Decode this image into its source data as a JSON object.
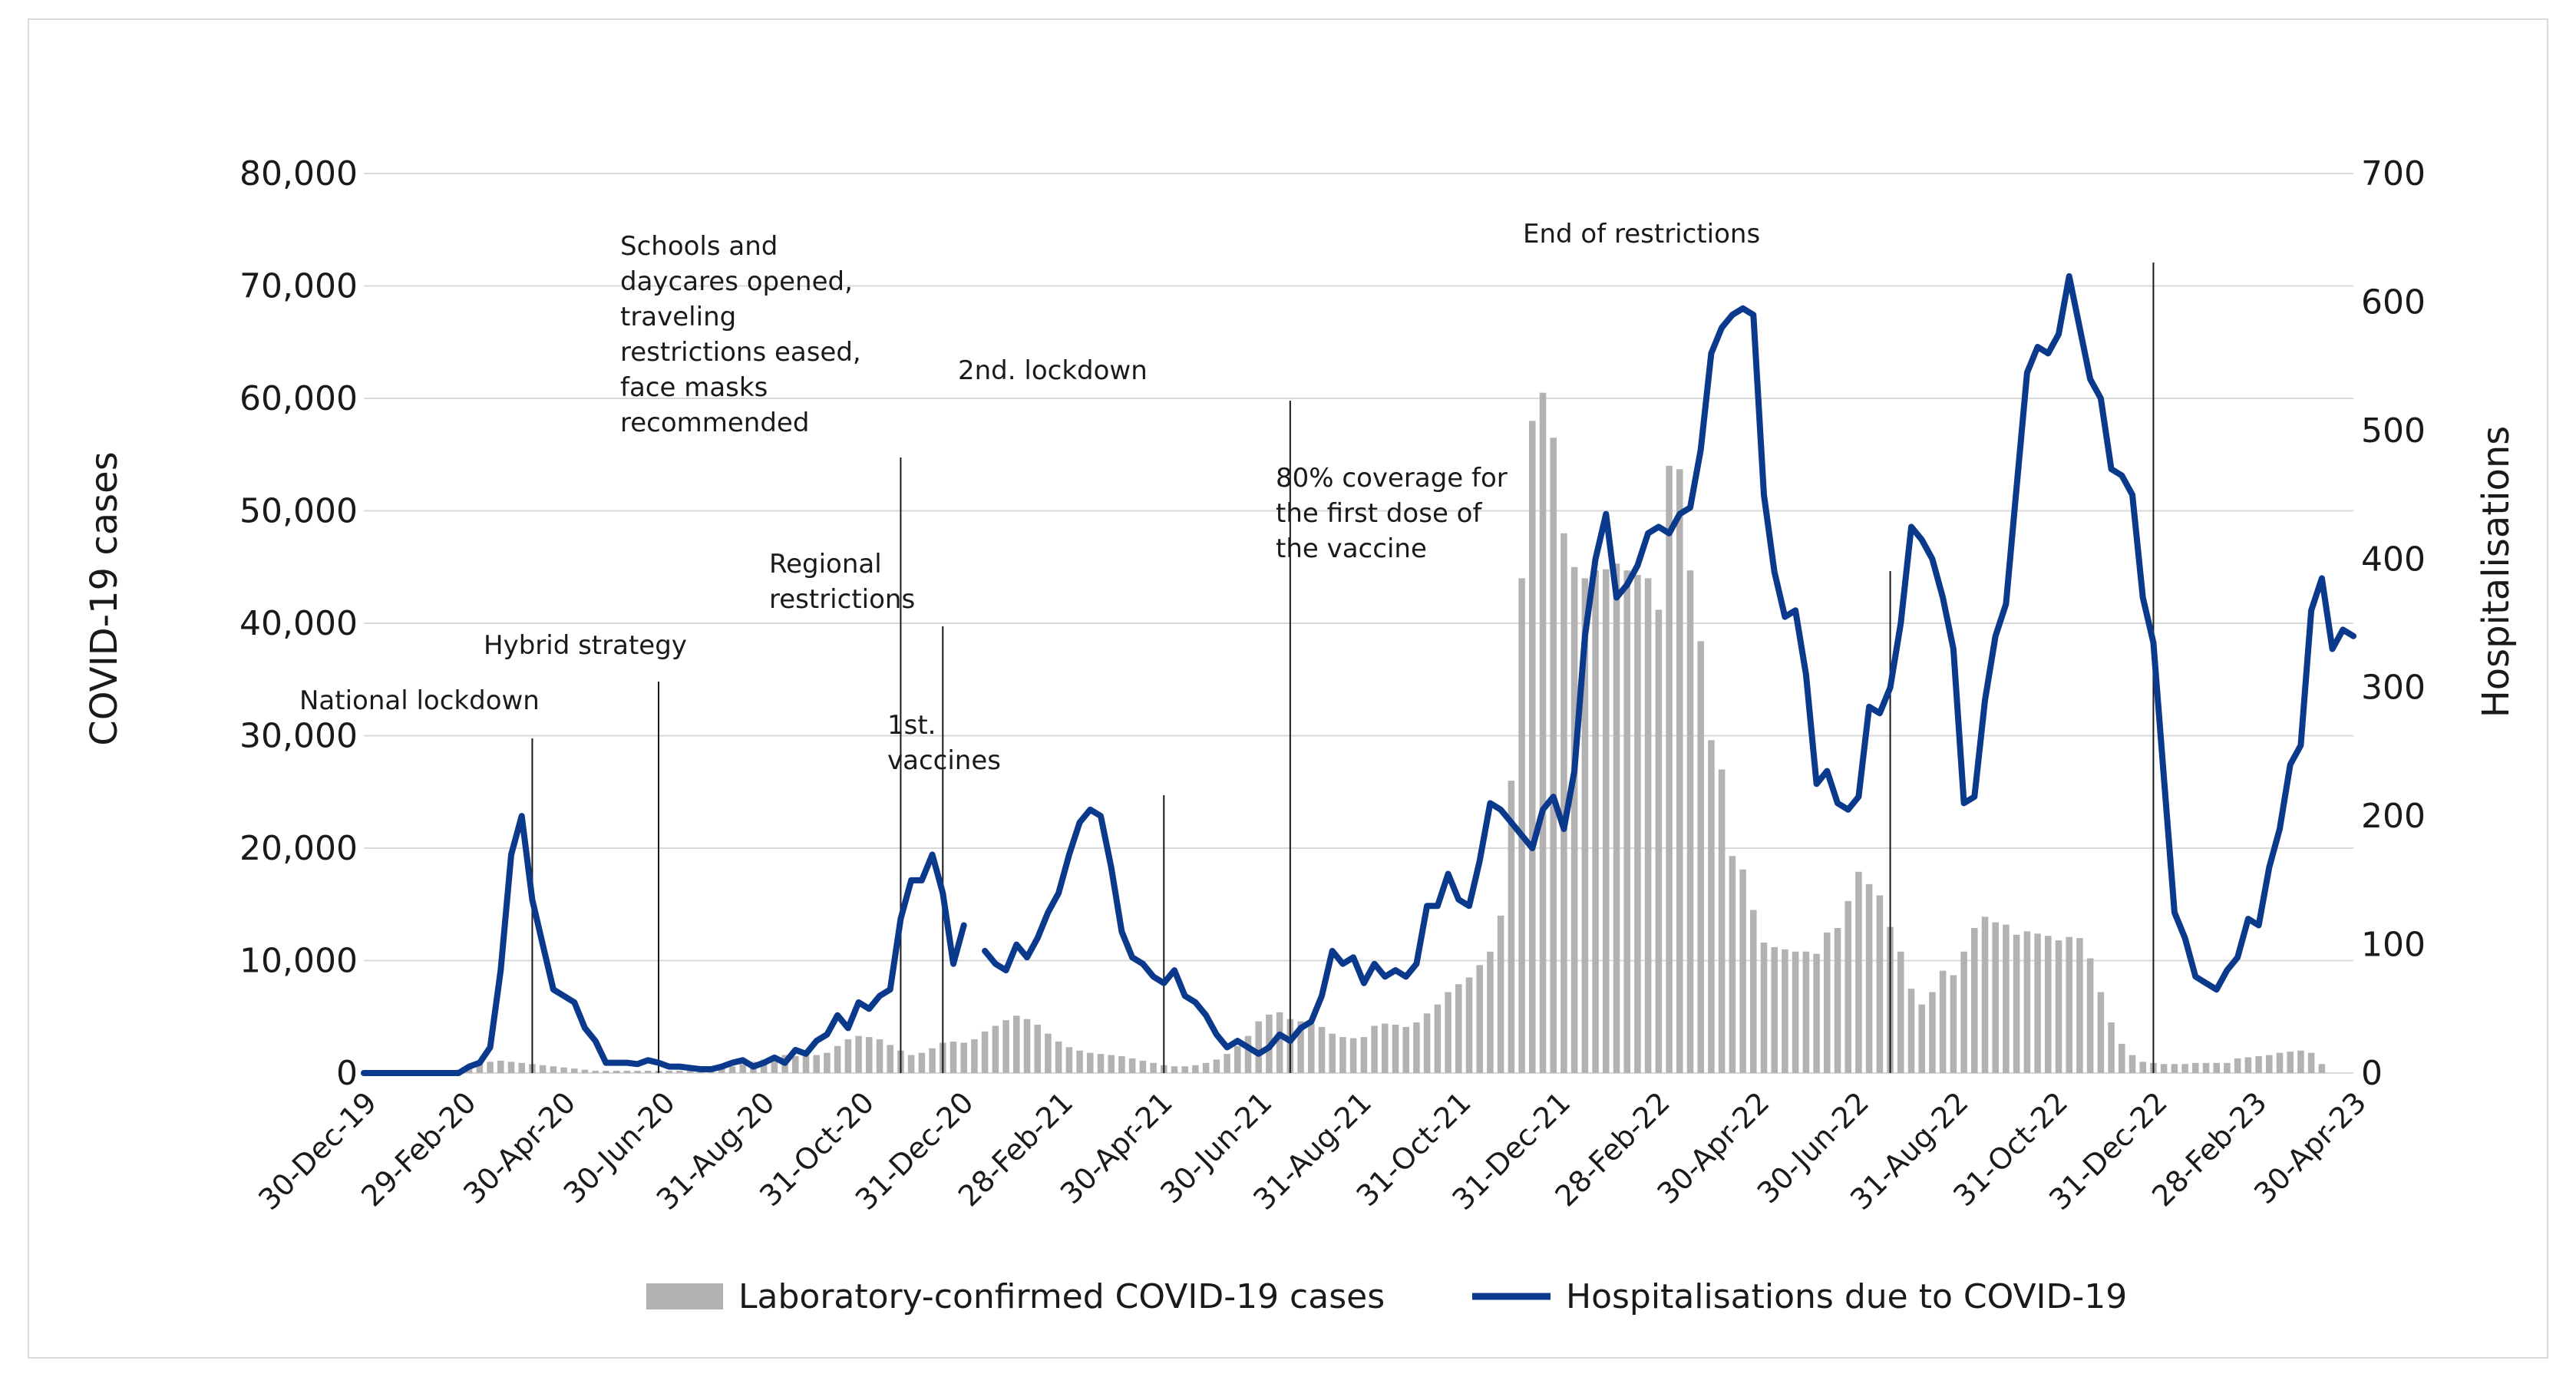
{
  "chart_data": {
    "type": "bar+line",
    "left_axis": {
      "label": "COVID-19 cases",
      "ylim": [
        0,
        80000
      ],
      "ticks": [
        "0",
        "10,000",
        "20,000",
        "30,000",
        "40,000",
        "50,000",
        "60,000",
        "70,000",
        "80,000"
      ]
    },
    "right_axis": {
      "label": "Hospitalisations",
      "ylim": [
        0,
        700
      ],
      "ticks": [
        "0",
        "100",
        "200",
        "300",
        "400",
        "500",
        "600",
        "700"
      ]
    },
    "x_tick_labels": [
      "30-Dec-19",
      "29-Feb-20",
      "30-Apr-20",
      "30-Jun-20",
      "31-Aug-20",
      "31-Oct-20",
      "31-Dec-20",
      "28-Feb-21",
      "30-Apr-21",
      "30-Jun-21",
      "31-Aug-21",
      "31-Oct-21",
      "31-Dec-21",
      "28-Feb-22",
      "30-Apr-22",
      "30-Jun-22",
      "31-Aug-22",
      "31-Oct-22",
      "31-Dec-22",
      "28-Feb-23",
      "30-Apr-23"
    ],
    "grid": true,
    "legend_position": "bottom",
    "colors": {
      "bars": "#b3b1b1",
      "line": "#0b3a8c",
      "grid": "#d9d9d9",
      "annotation_line": "#1a1a1a"
    },
    "series": [
      {
        "name": "Laboratory-confirmed COVID-19 cases",
        "kind": "bar",
        "axis": "left",
        "values": [
          0,
          0,
          0,
          0,
          0,
          0,
          0,
          0,
          100,
          300,
          500,
          800,
          1000,
          1100,
          1000,
          900,
          800,
          700,
          600,
          500,
          400,
          300,
          200,
          200,
          200,
          200,
          200,
          200,
          200,
          200,
          200,
          300,
          300,
          400,
          500,
          600,
          800,
          1000,
          1200,
          1400,
          1600,
          1500,
          1600,
          1600,
          1800,
          2400,
          3000,
          3300,
          3200,
          3000,
          2500,
          2000,
          1600,
          1800,
          2200,
          2700,
          2800,
          2700,
          3000,
          3700,
          4200,
          4700,
          5100,
          4800,
          4300,
          3500,
          2800,
          2300,
          2000,
          1800,
          1700,
          1600,
          1500,
          1300,
          1100,
          900,
          700,
          600,
          600,
          700,
          900,
          1200,
          1700,
          2400,
          3300,
          4600,
          5200,
          5400,
          4800,
          4600,
          4400,
          4100,
          3500,
          3200,
          3100,
          3200,
          4200,
          4400,
          4300,
          4100,
          4500,
          5300,
          6100,
          7200,
          7900,
          8500,
          9600,
          10800,
          14000,
          26000,
          44000,
          58000,
          60500,
          56500,
          48000,
          45000,
          44000,
          44700,
          44800,
          45300,
          44700,
          44300,
          44000,
          41200,
          54000,
          53700,
          44700,
          38400,
          29600,
          27000,
          19300,
          18100,
          14500,
          11600,
          11200,
          11000,
          10800,
          10800,
          10600,
          12500,
          12900,
          15300,
          17900,
          16800,
          15800,
          13000,
          10800,
          7500,
          6100,
          7200,
          9100,
          8700,
          10800,
          12900,
          13900,
          13400,
          13200,
          12300,
          12600,
          12400,
          12200,
          11800,
          12100,
          12000,
          10200,
          7200,
          4500,
          2600,
          1600,
          1000,
          900,
          800,
          800,
          800,
          900,
          900,
          900,
          900,
          1300,
          1400,
          1500,
          1600,
          1800,
          1900,
          2000,
          1800,
          800
        ]
      },
      {
        "name": "Hospitalisations due to COVID-19",
        "kind": "line",
        "axis": "right",
        "values": [
          0,
          0,
          0,
          0,
          0,
          0,
          0,
          0,
          0,
          0,
          5,
          8,
          20,
          80,
          170,
          200,
          135,
          100,
          65,
          60,
          55,
          35,
          25,
          8,
          8,
          8,
          7,
          10,
          8,
          5,
          5,
          4,
          3,
          3,
          5,
          8,
          10,
          5,
          8,
          12,
          8,
          18,
          15,
          25,
          30,
          45,
          35,
          55,
          50,
          60,
          65,
          120,
          150,
          150,
          170,
          140,
          85,
          115,
          null,
          95,
          85,
          80,
          100,
          90,
          105,
          125,
          140,
          170,
          195,
          205,
          200,
          160,
          110,
          90,
          85,
          75,
          70,
          80,
          60,
          55,
          45,
          30,
          20,
          25,
          20,
          15,
          20,
          30,
          25,
          35,
          40,
          60,
          95,
          85,
          90,
          70,
          85,
          75,
          80,
          75,
          85,
          130,
          130,
          155,
          135,
          130,
          165,
          210,
          205,
          195,
          185,
          175,
          205,
          215,
          190,
          235,
          340,
          400,
          435,
          370,
          380,
          395,
          420,
          425,
          420,
          435,
          440,
          485,
          560,
          580,
          590,
          595,
          590,
          450,
          390,
          355,
          360,
          310,
          225,
          235,
          210,
          205,
          215,
          285,
          280,
          300,
          350,
          425,
          415,
          400,
          370,
          330,
          210,
          215,
          290,
          340,
          365,
          455,
          545,
          565,
          560,
          575,
          620,
          580,
          540,
          525,
          470,
          465,
          450,
          370,
          335,
          230,
          125,
          105,
          75,
          70,
          65,
          80,
          90,
          120,
          115,
          160,
          190,
          240,
          255,
          360,
          385,
          330,
          345,
          340
        ]
      }
    ],
    "annotations": [
      {
        "lines": [
          "National lockdown"
        ]
      },
      {
        "lines": [
          "Hybrid strategy"
        ]
      },
      {
        "lines": [
          "Schools and",
          "daycares opened,",
          "traveling",
          "restrictions eased,",
          "face masks",
          "recommended"
        ]
      },
      {
        "lines": [
          "Regional",
          "restrictions"
        ]
      },
      {
        "lines": [
          "1st.",
          "vaccines"
        ]
      },
      {
        "lines": [
          "2nd. lockdown"
        ]
      },
      {
        "lines": [
          "80% coverage for",
          "the first dose of",
          "the vaccine"
        ]
      },
      {
        "lines": [
          "End of restrictions"
        ]
      }
    ]
  }
}
